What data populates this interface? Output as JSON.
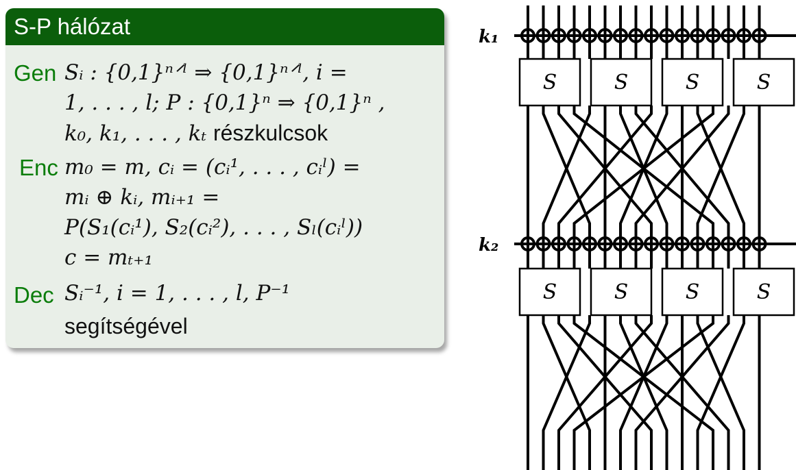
{
  "block": {
    "title": "S-P hálózat",
    "gen": {
      "keyword": "Gen",
      "line1": "Sᵢ : {0,1}ⁿᐟˡ ⇒ {0,1}ⁿᐟˡ, i =",
      "line2": "1, . . . , l; P : {0,1}ⁿ ⇒ {0,1}ⁿ ,",
      "line3_math": "k₀, k₁, . . . , kₜ",
      "line3_text": "részkulcsok"
    },
    "enc": {
      "keyword": "Enc",
      "line1": "m₀ = m, cᵢ = (cᵢ¹, . . . , cᵢˡ) =",
      "line2": "mᵢ ⊕ kᵢ, mᵢ₊₁ =",
      "line3": "P(S₁(cᵢ¹), S₂(cᵢ²), . . . , Sₗ(cᵢˡ))",
      "line4": "c = mₜ₊₁"
    },
    "dec": {
      "keyword": "Dec",
      "line1": "Sᵢ⁻¹, i = 1, . . . , l, P⁻¹",
      "line2": "segítségével"
    }
  },
  "diagram": {
    "round_keys": [
      "k₁",
      "k₂"
    ],
    "sbox_label": "S"
  }
}
